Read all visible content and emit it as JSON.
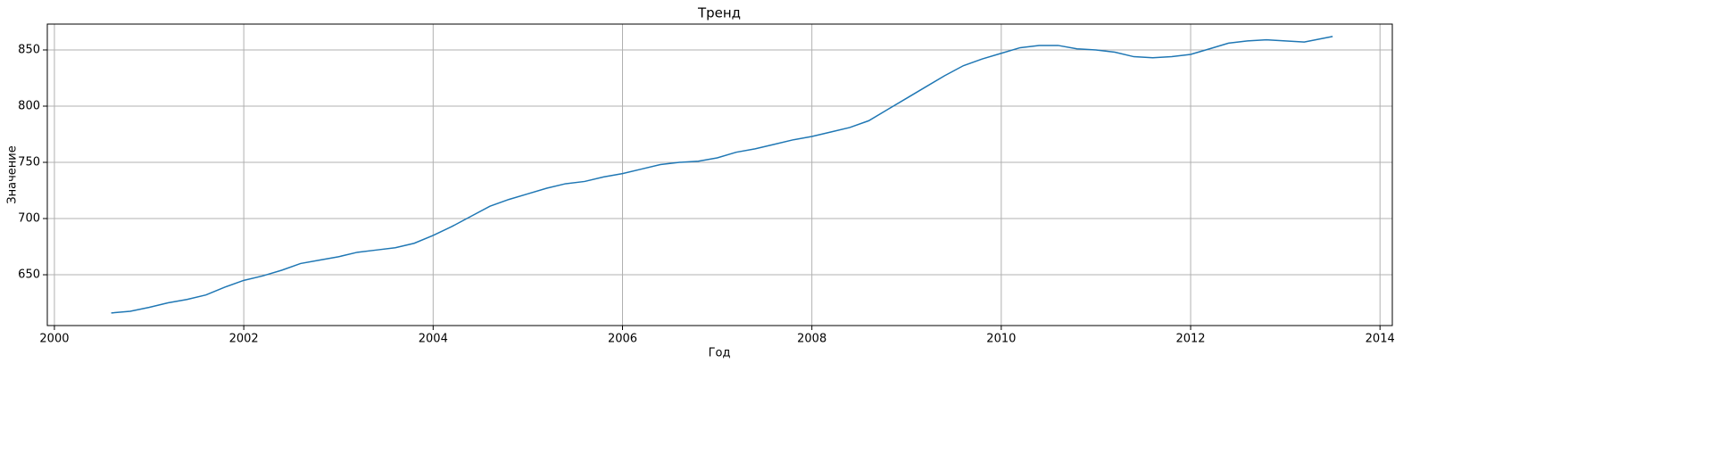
{
  "chart_data": {
    "type": "line",
    "title": "Тренд",
    "x_label": "Год",
    "y_label": "Значение",
    "x": [
      2000.6,
      2000.8,
      2001.0,
      2001.2,
      2001.4,
      2001.6,
      2001.8,
      2002.0,
      2002.2,
      2002.4,
      2002.6,
      2002.8,
      2003.0,
      2003.2,
      2003.4,
      2003.6,
      2003.8,
      2004.0,
      2004.2,
      2004.4,
      2004.6,
      2004.8,
      2005.0,
      2005.2,
      2005.4,
      2005.6,
      2005.8,
      2006.0,
      2006.2,
      2006.4,
      2006.6,
      2006.8,
      2007.0,
      2007.2,
      2007.4,
      2007.6,
      2007.8,
      2008.0,
      2008.2,
      2008.4,
      2008.6,
      2008.8,
      2009.0,
      2009.2,
      2009.4,
      2009.6,
      2009.8,
      2010.0,
      2010.2,
      2010.4,
      2010.6,
      2010.8,
      2011.0,
      2011.2,
      2011.4,
      2011.6,
      2011.8,
      2012.0,
      2012.2,
      2012.4,
      2012.6,
      2012.8,
      2013.0,
      2013.2,
      2013.5
    ],
    "series": [
      {
        "color": "#1f77b4",
        "values": [
          616,
          617.5,
          621,
          625,
          628,
          632,
          639,
          645,
          649,
          654,
          660,
          663,
          666,
          670,
          672,
          674,
          678,
          685,
          693,
          702,
          711,
          717,
          722,
          727,
          731,
          733,
          737,
          740,
          744,
          748,
          750,
          751,
          754,
          759,
          762,
          766,
          770,
          773,
          777,
          781,
          787,
          797,
          807,
          817,
          827,
          836,
          842,
          847,
          852,
          854,
          854,
          851,
          850,
          848,
          844,
          843,
          844,
          846,
          851,
          856,
          858,
          859,
          858,
          857,
          862
        ]
      }
    ],
    "xlim": [
      1999.925,
      2014.13
    ],
    "xticks": [
      2000,
      2002,
      2004,
      2006,
      2008,
      2010,
      2012,
      2014
    ],
    "ylim": [
      604.8,
      873
    ],
    "yticks": [
      650,
      700,
      750,
      800,
      850
    ],
    "grid": true
  }
}
